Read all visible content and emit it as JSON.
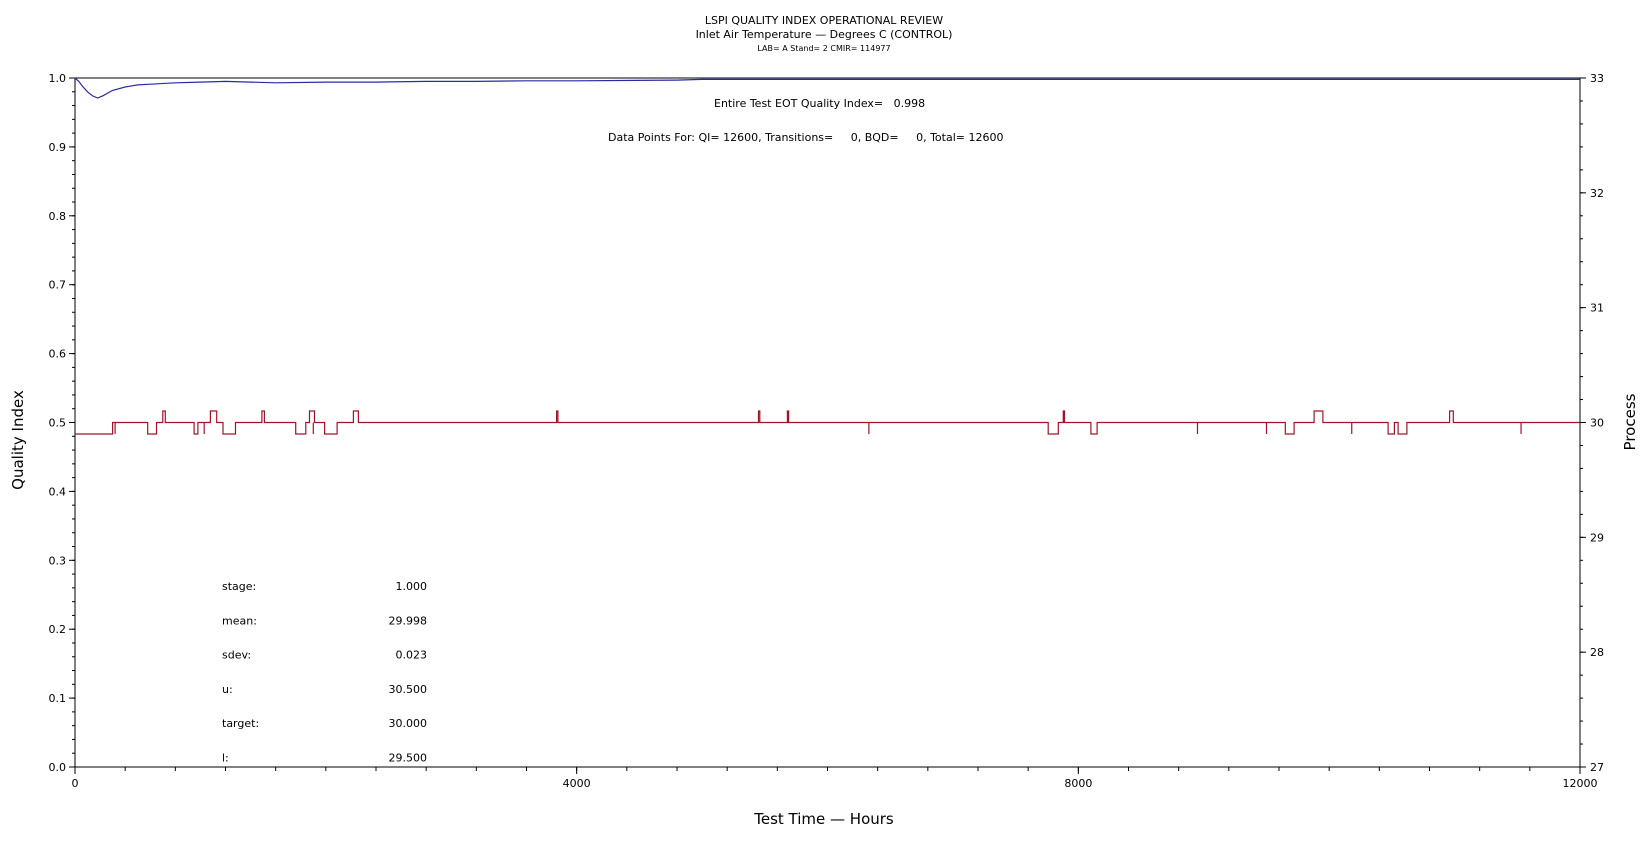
{
  "chart_data": {
    "type": "line",
    "title": "LSPI QUALITY INDEX OPERATIONAL REVIEW",
    "subtitle": "Inlet Air Temperature — Degrees C (CONTROL)",
    "subtitle2": "LAB= A Stand= 2 CMIR= 114977",
    "xlabel": "Test Time — Hours",
    "ylabel_left": "Quality Index",
    "ylabel_right": "Process",
    "xlim": [
      0,
      12000
    ],
    "ylim_left": [
      0,
      1.0
    ],
    "ylim_right": [
      27,
      33
    ],
    "x_ticks": [
      "0",
      "4000",
      "8000",
      "12000"
    ],
    "y_ticks_left": [
      "0.0",
      "0.1",
      "0.2",
      "0.3",
      "0.4",
      "0.5",
      "0.6",
      "0.7",
      "0.8",
      "0.9",
      "1.0"
    ],
    "y_ticks_right": [
      "27",
      "28",
      "29",
      "30",
      "31",
      "32",
      "33"
    ],
    "grid": false,
    "annotations": {
      "quality_index": "Entire Test EOT Quality Index=   0.998",
      "data_points": "Data Points For: QI= 12600, Transitions=     0, BQD=     0, Total= 12600"
    },
    "stats": [
      {
        "label": "stage:",
        "value": "1.000"
      },
      {
        "label": "mean:",
        "value": "29.998"
      },
      {
        "label": "sdev:",
        "value": "0.023"
      },
      {
        "label": "u:",
        "value": "30.500"
      },
      {
        "label": "target:",
        "value": "30.000"
      },
      {
        "label": "l:",
        "value": "29.500"
      }
    ],
    "series": [
      {
        "axis": "left",
        "color": "#2a2aa8",
        "points": [
          [
            0,
            1.0
          ],
          [
            30,
            0.995
          ],
          [
            60,
            0.988
          ],
          [
            100,
            0.98
          ],
          [
            140,
            0.974
          ],
          [
            180,
            0.971
          ],
          [
            220,
            0.974
          ],
          [
            300,
            0.982
          ],
          [
            400,
            0.987
          ],
          [
            500,
            0.99
          ],
          [
            600,
            0.991
          ],
          [
            800,
            0.993
          ],
          [
            1000,
            0.994
          ],
          [
            1200,
            0.995
          ],
          [
            1400,
            0.994
          ],
          [
            1600,
            0.993
          ],
          [
            2000,
            0.994
          ],
          [
            2400,
            0.994
          ],
          [
            2800,
            0.995
          ],
          [
            3200,
            0.995
          ],
          [
            3600,
            0.996
          ],
          [
            4000,
            0.996
          ],
          [
            4800,
            0.997
          ],
          [
            5000,
            0.998
          ],
          [
            6000,
            0.998
          ],
          [
            8000,
            0.998
          ],
          [
            10000,
            0.998
          ],
          [
            12000,
            0.998
          ]
        ]
      },
      {
        "axis": "right",
        "color": "#a01428",
        "baseline": 30.0,
        "low": 29.9,
        "high": 30.1,
        "dips": [
          [
            0,
            300
          ],
          [
            580,
            650
          ],
          [
            950,
            980
          ],
          [
            1180,
            1280
          ],
          [
            1760,
            1840
          ],
          [
            1990,
            2090
          ],
          [
            7760,
            7840
          ],
          [
            8100,
            8150
          ],
          [
            9650,
            9720
          ],
          [
            10470,
            10520
          ],
          [
            10550,
            10620
          ]
        ],
        "spikes": [
          [
            700,
            720
          ],
          [
            1080,
            1130
          ],
          [
            1490,
            1510
          ],
          [
            1870,
            1910
          ],
          [
            2220,
            2260
          ],
          [
            3840,
            3850
          ],
          [
            5450,
            5460
          ],
          [
            5680,
            5690
          ],
          [
            7880,
            7890
          ],
          [
            9880,
            9950
          ],
          [
            10470,
            10480
          ],
          [
            10960,
            10990
          ]
        ],
        "dip_ticks": [
          320,
          1030,
          1900,
          6330,
          8950,
          9500,
          10180,
          11530
        ]
      }
    ]
  }
}
